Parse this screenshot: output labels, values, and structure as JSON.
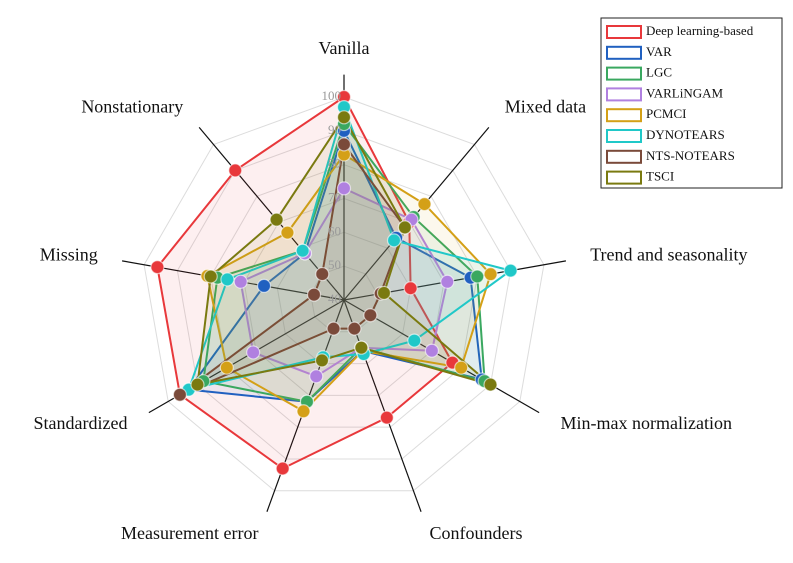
{
  "chart_data": {
    "type": "radar",
    "categories": [
      "Vanilla",
      "Mixed data",
      "Trend and seasonality",
      "Min-max normalization",
      "Confounders",
      "Measurement error",
      "Standardized",
      "Missing",
      "Nonstationary"
    ],
    "rlim": [
      40,
      100
    ],
    "rticks": [
      40,
      50,
      60,
      70,
      80,
      90,
      100
    ],
    "grid": true,
    "legend": "upper right",
    "series": [
      {
        "name": "Deep learning-based",
        "color": "#e8383b",
        "values": [
          100,
          70,
          60,
          77,
          77,
          93,
          96,
          96,
          90
        ]
      },
      {
        "name": "VAR",
        "color": "#2060c0",
        "values": [
          90,
          64,
          78,
          87,
          56,
          72,
          93,
          64,
          58
        ]
      },
      {
        "name": "LGC",
        "color": "#3aa860",
        "values": [
          92,
          72,
          80,
          88,
          55,
          72,
          88,
          78,
          59
        ]
      },
      {
        "name": "VARLiNGAM",
        "color": "#b080e0",
        "values": [
          73,
          71,
          71,
          70,
          55,
          64,
          71,
          71,
          58
        ]
      },
      {
        "name": "PCMCI",
        "color": "#d4a017",
        "values": [
          83,
          77,
          84,
          80,
          56,
          75,
          80,
          81,
          66
        ]
      },
      {
        "name": "DYNOTEARS",
        "color": "#20c8c8",
        "values": [
          97,
          63,
          90,
          64,
          57,
          58,
          93,
          75,
          59
        ]
      },
      {
        "name": "NTS-NOTEARS",
        "color": "#7a4a3a",
        "values": [
          86,
          68,
          51,
          49,
          49,
          49,
          96,
          49,
          50
        ]
      },
      {
        "name": "TSCI",
        "color": "#7a7a10",
        "values": [
          94,
          68,
          52,
          90,
          55,
          59,
          90,
          80,
          71
        ]
      }
    ]
  }
}
